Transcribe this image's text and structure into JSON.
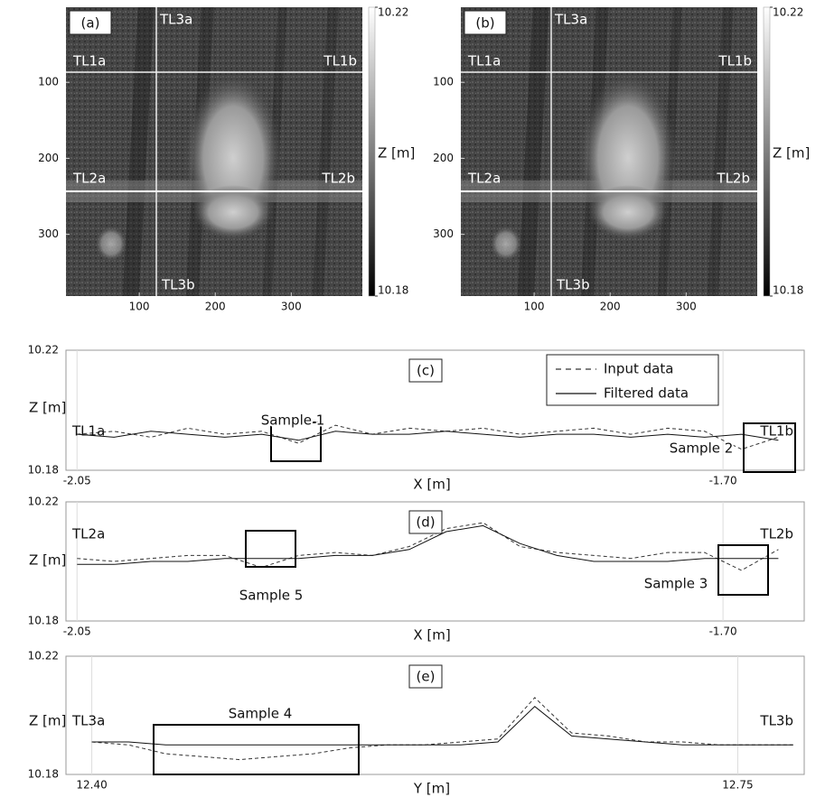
{
  "chart_data": [
    {
      "type": "image",
      "panel_label": "(a)",
      "xlim": [
        0,
        390
      ],
      "ylim": [
        0,
        380
      ],
      "xticks": [
        100,
        200,
        300
      ],
      "yticks": [
        100,
        200,
        300
      ],
      "line_labels": [
        "TL1a",
        "TL1b",
        "TL2a",
        "TL2b",
        "TL3a",
        "TL3b"
      ],
      "colorbar": {
        "label": "Z [m]",
        "ticks": [
          10.22,
          10.18
        ]
      }
    },
    {
      "type": "image",
      "panel_label": "(b)",
      "xlim": [
        0,
        390
      ],
      "ylim": [
        0,
        380
      ],
      "xticks": [
        100,
        200,
        300
      ],
      "yticks": [
        100,
        200,
        300
      ],
      "line_labels": [
        "TL1a",
        "TL1b",
        "TL2a",
        "TL2b",
        "TL3a",
        "TL3b"
      ],
      "colorbar": {
        "label": "Z [m]",
        "ticks": [
          10.22,
          10.18
        ]
      }
    },
    {
      "type": "line",
      "panel_label": "(c)",
      "xlabel": "X [m]",
      "ylabel": "Z [m]",
      "start_label": "TL1a",
      "end_label": "TL1b",
      "samples": [
        "Sample 1",
        "Sample 2"
      ],
      "legend": "top-right",
      "grid": true,
      "xlim": [
        -2.056,
        -1.656
      ],
      "ylim": [
        10.18,
        10.22
      ],
      "xticks": [
        -2.05,
        {
          "value": -1.7,
          "label": "-1.70"
        }
      ],
      "yticks": [
        10.18,
        10.22
      ],
      "x": [
        -2.05,
        -2.03,
        -2.01,
        -1.99,
        -1.97,
        -1.95,
        -1.93,
        -1.91,
        -1.89,
        -1.87,
        -1.85,
        -1.83,
        -1.81,
        -1.79,
        -1.77,
        -1.75,
        -1.73,
        -1.71,
        -1.69,
        -1.67
      ],
      "series": [
        {
          "name": "Input data",
          "color": "#333333",
          "dash": true,
          "values": [
            10.192,
            10.193,
            10.191,
            10.194,
            10.192,
            10.193,
            10.189,
            10.195,
            10.192,
            10.194,
            10.193,
            10.194,
            10.192,
            10.193,
            10.194,
            10.192,
            10.194,
            10.193,
            10.187,
            10.191
          ]
        },
        {
          "name": "Filtered data",
          "color": "#111111",
          "dash": false,
          "values": [
            10.192,
            10.191,
            10.193,
            10.192,
            10.191,
            10.192,
            10.19,
            10.193,
            10.192,
            10.192,
            10.193,
            10.192,
            10.191,
            10.192,
            10.192,
            10.191,
            10.192,
            10.191,
            10.192,
            10.19
          ]
        }
      ]
    },
    {
      "type": "line",
      "panel_label": "(d)",
      "xlabel": "X [m]",
      "ylabel": "Z [m]",
      "start_label": "TL2a",
      "end_label": "TL2b",
      "samples": [
        "Sample 5",
        "Sample 3"
      ],
      "grid": true,
      "xlim": [
        -2.056,
        -1.656
      ],
      "ylim": [
        10.18,
        10.22
      ],
      "xticks": [
        -2.05,
        {
          "value": -1.7,
          "label": "-1.70"
        }
      ],
      "yticks": [
        10.18,
        10.22
      ],
      "x": [
        -2.05,
        -2.03,
        -2.01,
        -1.99,
        -1.97,
        -1.95,
        -1.93,
        -1.91,
        -1.89,
        -1.87,
        -1.85,
        -1.83,
        -1.81,
        -1.79,
        -1.77,
        -1.75,
        -1.73,
        -1.71,
        -1.69,
        -1.67
      ],
      "series": [
        {
          "color": "#333333",
          "dash": true,
          "values": [
            10.201,
            10.2,
            10.201,
            10.202,
            10.202,
            10.198,
            10.202,
            10.203,
            10.202,
            10.205,
            10.211,
            10.213,
            10.205,
            10.203,
            10.202,
            10.201,
            10.203,
            10.203,
            10.197,
            10.204
          ]
        },
        {
          "color": "#111111",
          "dash": false,
          "values": [
            10.199,
            10.199,
            10.2,
            10.2,
            10.201,
            10.201,
            10.201,
            10.202,
            10.202,
            10.204,
            10.21,
            10.212,
            10.206,
            10.202,
            10.2,
            10.2,
            10.2,
            10.201,
            10.201,
            10.201
          ]
        }
      ]
    },
    {
      "type": "line",
      "panel_label": "(e)",
      "xlabel": "Y [m]",
      "ylabel": "Z [m]",
      "start_label": "TL3a",
      "end_label": "TL3b",
      "samples": [
        "Sample 4"
      ],
      "grid": true,
      "xlim": [
        12.386,
        12.786
      ],
      "ylim": [
        10.18,
        10.22
      ],
      "xticks": [
        {
          "value": 12.4,
          "label": "12.40"
        },
        12.75
      ],
      "yticks": [
        10.18,
        10.22
      ],
      "x": [
        12.4,
        12.42,
        12.44,
        12.46,
        12.48,
        12.5,
        12.52,
        12.54,
        12.56,
        12.58,
        12.6,
        12.62,
        12.64,
        12.66,
        12.68,
        12.7,
        12.72,
        12.74,
        12.76,
        12.78
      ],
      "series": [
        {
          "color": "#333333",
          "dash": true,
          "values": [
            10.191,
            10.19,
            10.187,
            10.186,
            10.185,
            10.186,
            10.187,
            10.189,
            10.19,
            10.19,
            10.191,
            10.192,
            10.206,
            10.194,
            10.193,
            10.191,
            10.191,
            10.19,
            10.19,
            10.19
          ]
        },
        {
          "color": "#111111",
          "dash": false,
          "values": [
            10.191,
            10.191,
            10.19,
            10.19,
            10.19,
            10.19,
            10.19,
            10.19,
            10.19,
            10.19,
            10.19,
            10.191,
            10.203,
            10.193,
            10.192,
            10.191,
            10.19,
            10.19,
            10.19,
            10.19
          ]
        }
      ]
    }
  ]
}
